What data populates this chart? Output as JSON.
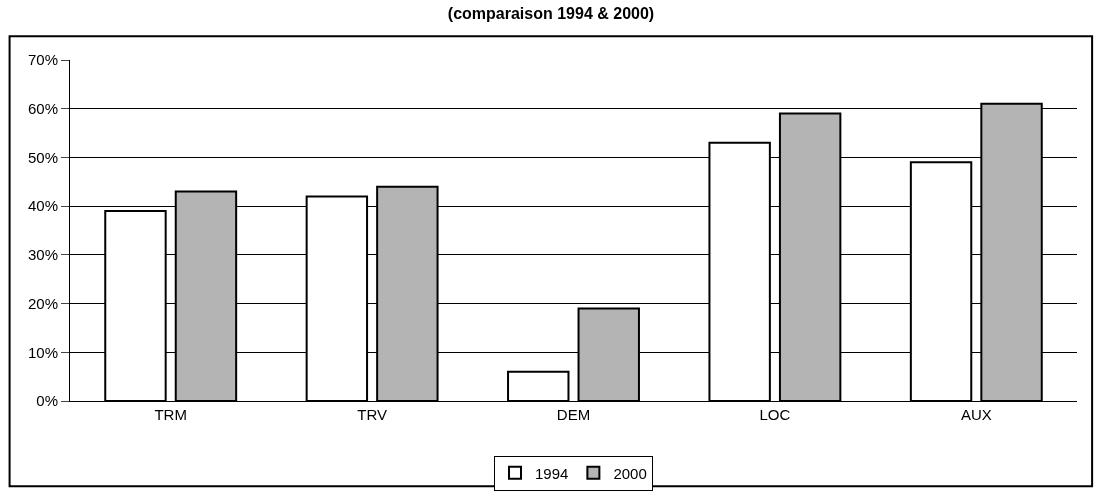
{
  "chart_data": {
    "type": "bar",
    "title": "(comparaison 1994 & 2000)",
    "categories": [
      "TRM",
      "TRV",
      "DEM",
      "LOC",
      "AUX"
    ],
    "series": [
      {
        "name": "1994",
        "color": "#ffffff",
        "values": [
          39,
          42,
          6,
          53,
          49
        ]
      },
      {
        "name": "2000",
        "color": "#b4b4b4",
        "values": [
          43,
          44,
          19,
          59,
          61
        ]
      }
    ],
    "ylim": [
      0,
      70
    ],
    "yticks": [
      {
        "value": 0,
        "label": "0%"
      },
      {
        "value": 10,
        "label": "10%"
      },
      {
        "value": 20,
        "label": "20%"
      },
      {
        "value": 30,
        "label": "30%"
      },
      {
        "value": 40,
        "label": "40%"
      },
      {
        "value": 50,
        "label": "50%"
      },
      {
        "value": 60,
        "label": "60%"
      },
      {
        "value": 70,
        "label": "70%"
      }
    ],
    "grid": "y",
    "legend": "bottom"
  }
}
